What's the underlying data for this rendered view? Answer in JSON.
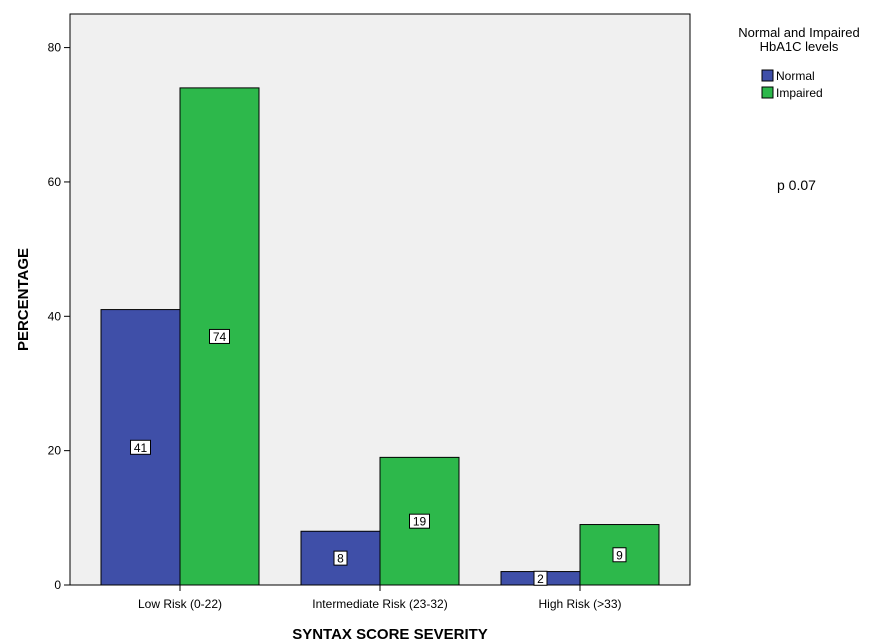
{
  "chart_data": {
    "type": "bar",
    "categories": [
      "Low Risk (0-22)",
      "Intermediate Risk (23-32)",
      "High Risk (>33)"
    ],
    "series": [
      {
        "name": "Normal",
        "values": [
          41,
          8,
          2
        ],
        "data_labels": [
          "41",
          "8",
          "2"
        ],
        "color": "#3f4fa8"
      },
      {
        "name": "Impaired",
        "values": [
          74,
          19,
          9
        ],
        "data_labels": [
          "74",
          "19",
          "9"
        ],
        "color": "#2db84b"
      }
    ],
    "title": "",
    "xlabel": "SYNTAX SCORE SEVERITY",
    "ylabel": "PERCENTAGE",
    "ylim": [
      0,
      85
    ],
    "yticks": [
      0,
      20,
      40,
      60,
      80
    ],
    "ytick_labels": [
      "0",
      "20",
      "40",
      "60",
      "80"
    ],
    "grid": false,
    "plot_background": "#f0f0f0",
    "legend": {
      "title_lines": [
        "Normal and Impaired",
        "HbA1C levels"
      ],
      "placement": "top-right outside"
    },
    "annotations": [
      {
        "text": "p 0.07"
      }
    ]
  }
}
